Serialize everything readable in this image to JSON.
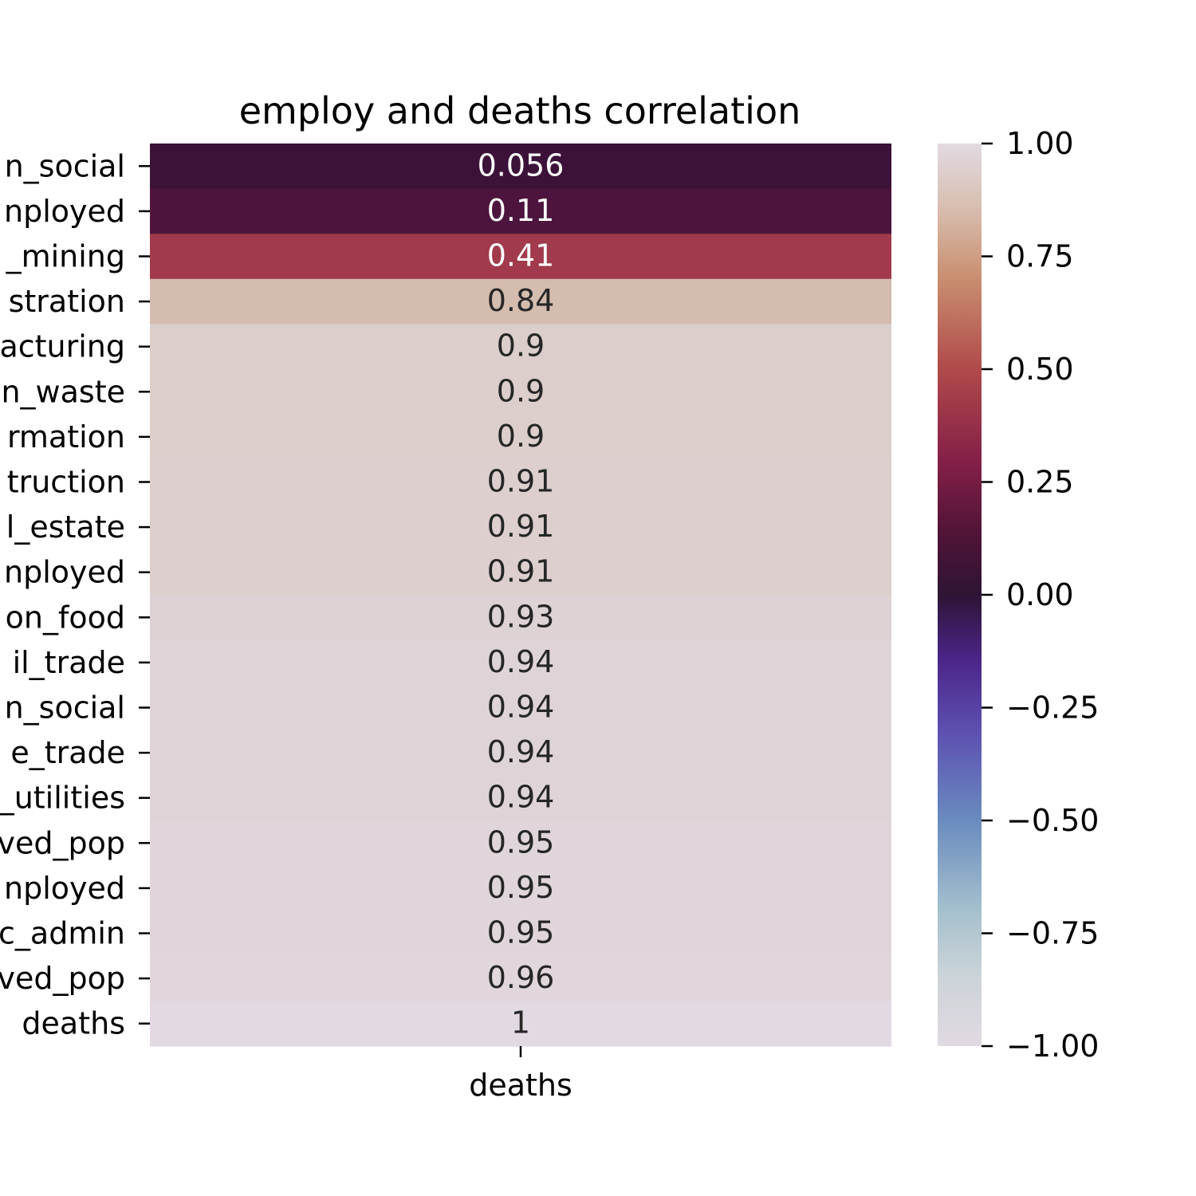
{
  "chart_data": {
    "type": "heatmap",
    "title": "employ and deaths correlation",
    "xlabel": "",
    "ylabel": "",
    "columns": [
      "deaths"
    ],
    "rows": [
      {
        "label": "n_social",
        "value": 0.056,
        "text": "0.056"
      },
      {
        "label": "nployed",
        "value": 0.11,
        "text": "0.11"
      },
      {
        "label": "_mining",
        "value": 0.41,
        "text": "0.41"
      },
      {
        "label": "stration",
        "value": 0.84,
        "text": "0.84"
      },
      {
        "label": "acturing",
        "value": 0.9,
        "text": "0.9"
      },
      {
        "label": "n_waste",
        "value": 0.9,
        "text": "0.9"
      },
      {
        "label": "rmation",
        "value": 0.9,
        "text": "0.9"
      },
      {
        "label": "truction",
        "value": 0.91,
        "text": "0.91"
      },
      {
        "label": "l_estate",
        "value": 0.91,
        "text": "0.91"
      },
      {
        "label": "nployed",
        "value": 0.91,
        "text": "0.91"
      },
      {
        "label": "on_food",
        "value": 0.93,
        "text": "0.93"
      },
      {
        "label": "il_trade",
        "value": 0.94,
        "text": "0.94"
      },
      {
        "label": "n_social",
        "value": 0.94,
        "text": "0.94"
      },
      {
        "label": "e_trade",
        "value": 0.94,
        "text": "0.94"
      },
      {
        "label": "_utilities",
        "value": 0.94,
        "text": "0.94"
      },
      {
        "label": "ved_pop",
        "value": 0.95,
        "text": "0.95"
      },
      {
        "label": "nployed",
        "value": 0.95,
        "text": "0.95"
      },
      {
        "label": "c_admin",
        "value": 0.95,
        "text": "0.95"
      },
      {
        "label": "ved_pop",
        "value": 0.96,
        "text": "0.96"
      },
      {
        "label": "deaths",
        "value": 1,
        "text": "1"
      }
    ],
    "colorbar": {
      "vmin": -1,
      "vmax": 1,
      "ticks": [
        1.0,
        0.75,
        0.5,
        0.25,
        0.0,
        -0.25,
        -0.5,
        -0.75,
        -1.0
      ],
      "tick_labels": [
        "1.00",
        "0.75",
        "0.50",
        "0.25",
        "0.00",
        "−0.25",
        "−0.50",
        "−0.75",
        "−1.00"
      ],
      "colormap": "twilight_shifted"
    },
    "grid": false,
    "legend": "colorbar-right"
  }
}
